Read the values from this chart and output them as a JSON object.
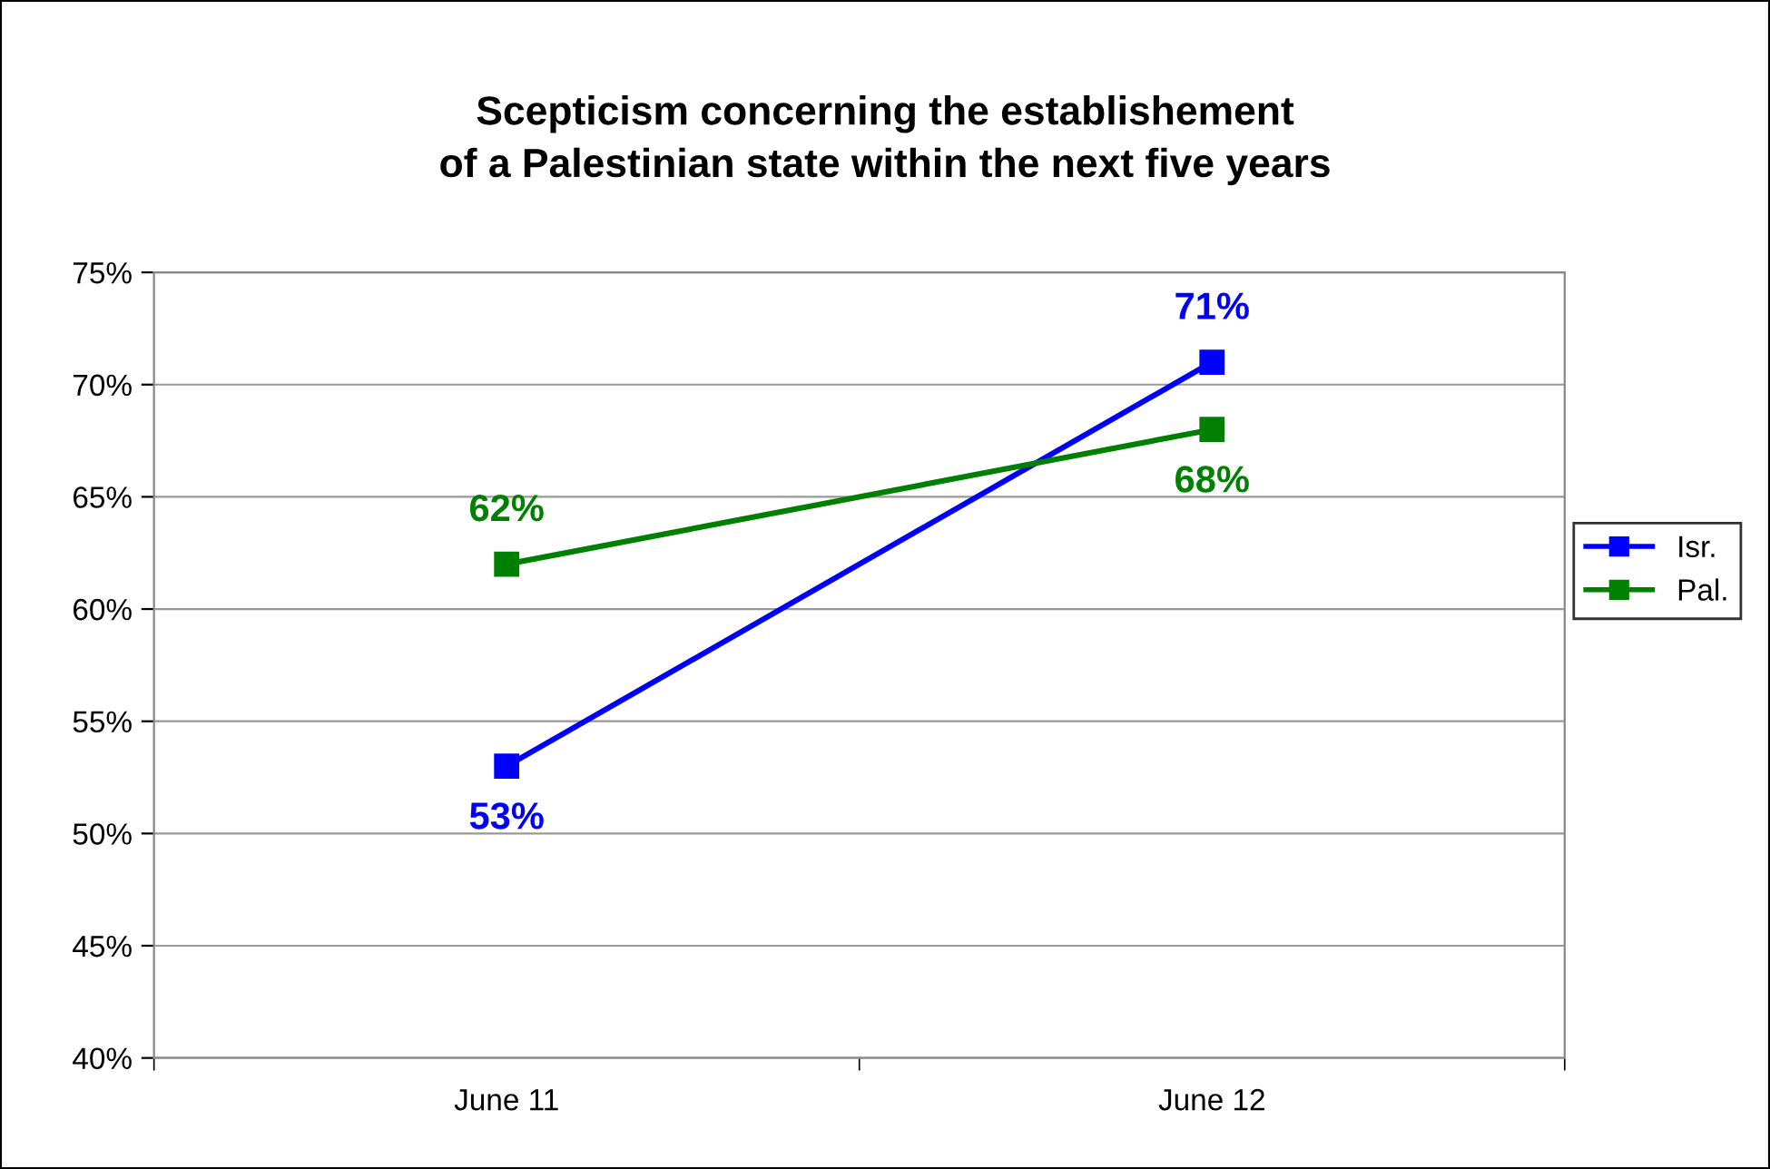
{
  "chart_data": {
    "type": "line",
    "title": "Scepticism concerning the establishement\nof a Palestinian state within the next five years",
    "categories": [
      "June 11",
      "June 12"
    ],
    "series": [
      {
        "name": "Isr.",
        "color": "#0000ff",
        "values": [
          53,
          71
        ],
        "value_labels": [
          "53%",
          "71%"
        ]
      },
      {
        "name": "Pal.",
        "color": "#008000",
        "values": [
          62,
          68
        ],
        "value_labels": [
          "62%",
          "68%"
        ]
      }
    ],
    "ylim": [
      40,
      75
    ],
    "yticks": [
      {
        "value": 40,
        "label": "40%"
      },
      {
        "value": 45,
        "label": "45%"
      },
      {
        "value": 50,
        "label": "50%"
      },
      {
        "value": 55,
        "label": "55%"
      },
      {
        "value": 60,
        "label": "60%"
      },
      {
        "value": 65,
        "label": "65%"
      },
      {
        "value": 70,
        "label": "70%"
      },
      {
        "value": 75,
        "label": "75%"
      }
    ],
    "grid": "y",
    "legend": "right",
    "marker": "square",
    "line_style": "solid"
  }
}
